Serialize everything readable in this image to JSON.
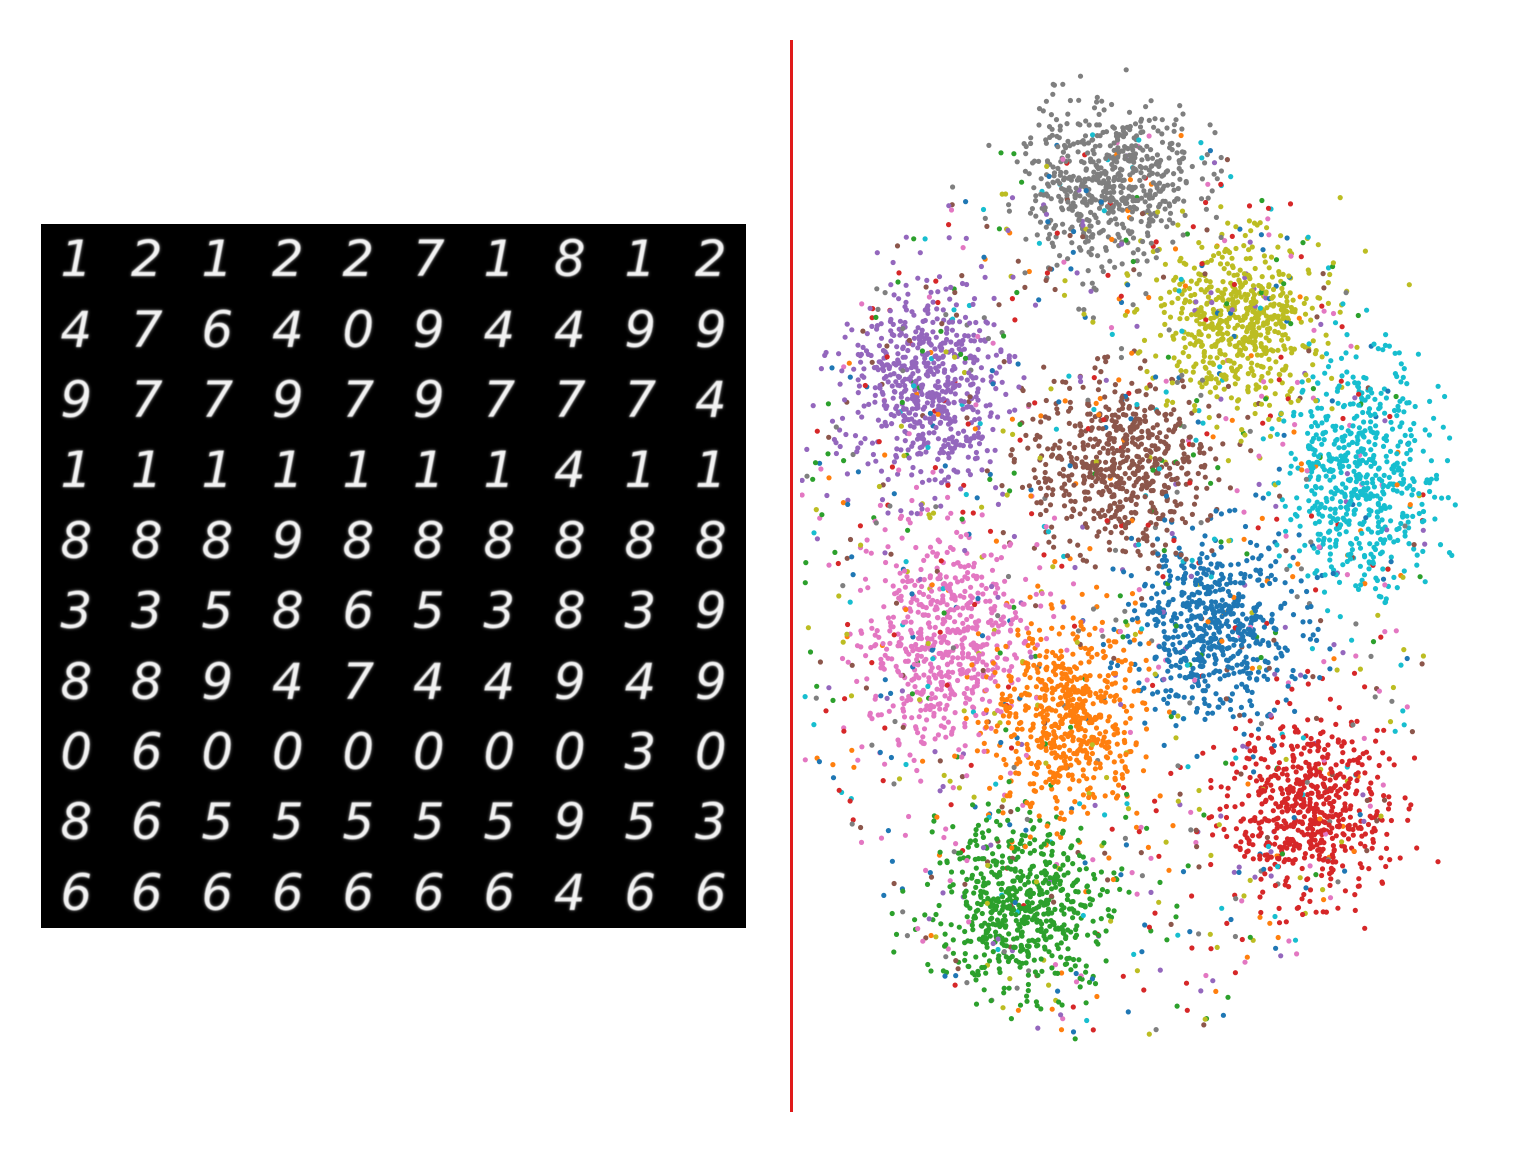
{
  "digit_grid": {
    "rows": [
      [
        "1",
        "2",
        "1",
        "2",
        "2",
        "7",
        "1",
        "8",
        "1",
        "2"
      ],
      [
        "4",
        "7",
        "6",
        "4",
        "0",
        "9",
        "4",
        "4",
        "9",
        "9"
      ],
      [
        "9",
        "7",
        "7",
        "9",
        "7",
        "9",
        "7",
        "7",
        "7",
        "4"
      ],
      [
        "1",
        "1",
        "1",
        "1",
        "1",
        "1",
        "1",
        "4",
        "1",
        "1"
      ],
      [
        "8",
        "8",
        "8",
        "9",
        "8",
        "8",
        "8",
        "8",
        "8",
        "8"
      ],
      [
        "3",
        "3",
        "5",
        "8",
        "6",
        "5",
        "3",
        "8",
        "3",
        "9"
      ],
      [
        "8",
        "8",
        "9",
        "4",
        "7",
        "4",
        "4",
        "9",
        "4",
        "9"
      ],
      [
        "0",
        "6",
        "0",
        "0",
        "0",
        "0",
        "0",
        "0",
        "3",
        "0"
      ],
      [
        "8",
        "6",
        "5",
        "5",
        "5",
        "5",
        "5",
        "9",
        "5",
        "3"
      ],
      [
        "6",
        "6",
        "6",
        "6",
        "6",
        "6",
        "6",
        "4",
        "6",
        "6"
      ]
    ]
  },
  "divider_color": "#e01a1a",
  "chart_data": {
    "type": "scatter",
    "title": "",
    "xlabel": "",
    "ylabel": "",
    "axes_visible": false,
    "grid": false,
    "legend": false,
    "xlim": [
      0,
      720
    ],
    "ylim": [
      0,
      1100
    ],
    "y_inverted": true,
    "point_count_approx": 10000,
    "clusters": [
      {
        "color": "#1f77b4",
        "center": [
          425,
          605
        ],
        "spread": [
          75,
          85
        ],
        "approx_points": 780
      },
      {
        "color": "#ff7f0e",
        "center": [
          275,
          700
        ],
        "spread": [
          70,
          90
        ],
        "approx_points": 780
      },
      {
        "color": "#2ca02c",
        "center": [
          230,
          900
        ],
        "spread": [
          80,
          80
        ],
        "approx_points": 780
      },
      {
        "color": "#d62728",
        "center": [
          520,
          800
        ],
        "spread": [
          75,
          85
        ],
        "approx_points": 780
      },
      {
        "color": "#9467bd",
        "center": [
          130,
          350
        ],
        "spread": [
          70,
          95
        ],
        "approx_points": 780
      },
      {
        "color": "#8c564b",
        "center": [
          330,
          430
        ],
        "spread": [
          85,
          85
        ],
        "approx_points": 780
      },
      {
        "color": "#e377c2",
        "center": [
          145,
          620
        ],
        "spread": [
          75,
          110
        ],
        "approx_points": 780
      },
      {
        "color": "#7f7f7f",
        "center": [
          320,
          130
        ],
        "spread": [
          80,
          80
        ],
        "approx_points": 780
      },
      {
        "color": "#bcbd22",
        "center": [
          450,
          280
        ],
        "spread": [
          75,
          80
        ],
        "approx_points": 780
      },
      {
        "color": "#17becf",
        "center": [
          575,
          445
        ],
        "spread": [
          70,
          110
        ],
        "approx_points": 780
      }
    ],
    "background_noise_points_approx": 2200
  }
}
